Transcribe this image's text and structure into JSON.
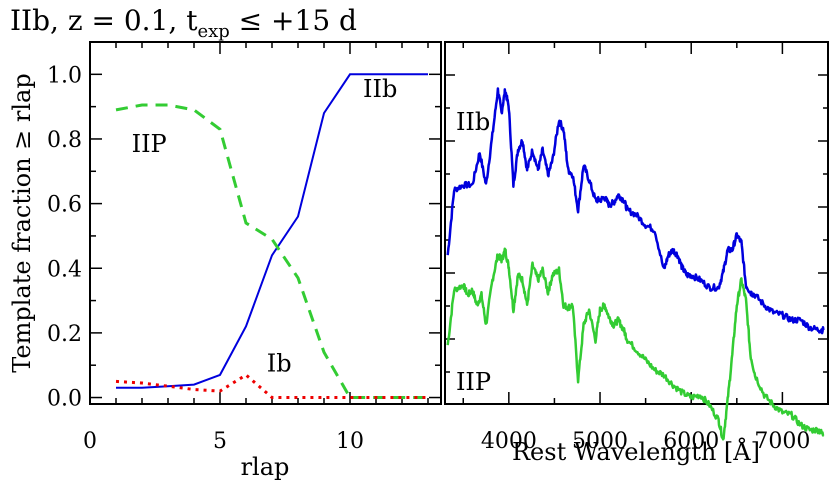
{
  "title": {
    "prefix": "IIb, z = 0.1, t",
    "subscript": "exp",
    "suffix": " ≤ +15 d"
  },
  "chart_data": [
    {
      "type": "line",
      "xlabel": "rlap",
      "ylabel": "Template fraction ≥ rlap",
      "xlim": [
        0,
        13.5
      ],
      "ylim": [
        -0.02,
        1.1
      ],
      "xticks": [
        0,
        5,
        10
      ],
      "xtick_labels": [
        "0",
        "5",
        "10"
      ],
      "yticks": [
        0.0,
        0.2,
        0.4,
        0.6,
        0.8,
        1.0
      ],
      "ytick_labels": [
        "0.0",
        "0.2",
        "0.4",
        "0.6",
        "0.8",
        "1.0"
      ],
      "grid": false,
      "series": [
        {
          "label": "IIb",
          "color": "#0000dd",
          "style": "solid",
          "x": [
            1,
            2,
            3,
            4,
            5,
            6,
            7,
            8,
            9,
            10,
            11,
            12,
            13
          ],
          "y": [
            0.03,
            0.03,
            0.035,
            0.04,
            0.07,
            0.22,
            0.44,
            0.56,
            0.88,
            1.0,
            1.0,
            1.0,
            1.0
          ]
        },
        {
          "label": "IIP",
          "color": "#33cc33",
          "style": "dashed",
          "x": [
            1,
            2,
            3,
            4,
            5,
            6,
            7,
            8,
            9,
            10,
            11,
            12,
            13
          ],
          "y": [
            0.89,
            0.905,
            0.905,
            0.89,
            0.83,
            0.54,
            0.49,
            0.37,
            0.14,
            0.0,
            0.0,
            0.0,
            0.0
          ]
        },
        {
          "label": "Ib",
          "color": "#ee0000",
          "style": "dotted",
          "x": [
            1,
            2,
            3,
            4,
            5,
            6,
            7,
            8,
            9,
            10,
            11,
            12,
            13
          ],
          "y": [
            0.05,
            0.045,
            0.035,
            0.025,
            0.02,
            0.07,
            0.0,
            0.0,
            0.0,
            0.0,
            0.0,
            0.0,
            0.0
          ]
        }
      ],
      "annotations": [
        {
          "text": "IIb",
          "x": 10.5,
          "y": 0.93
        },
        {
          "text": "IIP",
          "x": 1.6,
          "y": 0.76
        },
        {
          "text": "Ib",
          "x": 6.8,
          "y": 0.08
        }
      ]
    },
    {
      "type": "line",
      "xlabel": "Rest Wavelength [Å]",
      "ylabel": "",
      "xlim": [
        3300,
        7500
      ],
      "xticks": [
        4000,
        5000,
        6000,
        7000
      ],
      "xtick_labels": [
        "4000",
        "5000",
        "6000",
        "7000"
      ],
      "grid": false,
      "series": [
        {
          "label": "IIb",
          "color": "#0000dd",
          "x": [
            3330,
            3400,
            3500,
            3600,
            3680,
            3750,
            3820,
            3880,
            3920,
            3960,
            4000,
            4050,
            4100,
            4150,
            4200,
            4260,
            4320,
            4370,
            4430,
            4480,
            4550,
            4600,
            4650,
            4700,
            4760,
            4820,
            4880,
            4950,
            5000,
            5050,
            5100,
            5150,
            5200,
            5260,
            5300,
            5400,
            5500,
            5600,
            5700,
            5750,
            5800,
            5850,
            5900,
            5950,
            6000,
            6100,
            6200,
            6300,
            6350,
            6400,
            6450,
            6500,
            6550,
            6600,
            6650,
            6700,
            6800,
            6900,
            7000,
            7100,
            7200,
            7300,
            7400,
            7450
          ],
          "y": [
            0.3,
            0.56,
            0.58,
            0.58,
            0.71,
            0.58,
            0.78,
            0.96,
            0.87,
            0.96,
            0.89,
            0.58,
            0.72,
            0.76,
            0.64,
            0.72,
            0.64,
            0.72,
            0.62,
            0.68,
            0.84,
            0.8,
            0.64,
            0.62,
            0.48,
            0.66,
            0.6,
            0.52,
            0.52,
            0.53,
            0.5,
            0.51,
            0.54,
            0.52,
            0.48,
            0.46,
            0.42,
            0.4,
            0.24,
            0.3,
            0.32,
            0.3,
            0.25,
            0.22,
            0.22,
            0.2,
            0.17,
            0.17,
            0.23,
            0.32,
            0.32,
            0.38,
            0.35,
            0.18,
            0.15,
            0.14,
            0.1,
            0.07,
            0.06,
            0.04,
            0.04,
            0.01,
            0.0,
            0.0
          ]
        },
        {
          "label": "IIP",
          "color": "#33cc33",
          "x": [
            3330,
            3400,
            3500,
            3550,
            3600,
            3650,
            3700,
            3750,
            3820,
            3880,
            3920,
            3960,
            4000,
            4050,
            4100,
            4150,
            4200,
            4260,
            4320,
            4370,
            4430,
            4480,
            4550,
            4600,
            4650,
            4700,
            4760,
            4820,
            4880,
            4950,
            5000,
            5050,
            5100,
            5150,
            5200,
            5260,
            5300,
            5400,
            5500,
            5600,
            5700,
            5800,
            5900,
            6000,
            6100,
            6200,
            6300,
            6350,
            6400,
            6450,
            6500,
            6550,
            6600,
            6650,
            6700,
            6800,
            6900,
            7000,
            7100,
            7200,
            7300,
            7400,
            7450
          ],
          "y": [
            -0.06,
            0.16,
            0.18,
            0.14,
            0.16,
            0.1,
            0.14,
            0.02,
            0.2,
            0.3,
            0.28,
            0.32,
            0.25,
            0.08,
            0.22,
            0.2,
            0.1,
            0.26,
            0.2,
            0.24,
            0.15,
            0.22,
            0.24,
            0.1,
            0.09,
            0.1,
            -0.2,
            0.02,
            0.08,
            -0.04,
            0.08,
            0.1,
            0.05,
            0.02,
            0.04,
            0.0,
            -0.04,
            -0.08,
            -0.12,
            -0.16,
            -0.18,
            -0.22,
            -0.25,
            -0.27,
            -0.26,
            -0.3,
            -0.36,
            -0.44,
            -0.28,
            -0.1,
            0.1,
            0.2,
            0.12,
            -0.1,
            -0.18,
            -0.26,
            -0.3,
            -0.33,
            -0.34,
            -0.38,
            -0.4,
            -0.4,
            -0.42
          ]
        }
      ],
      "annotations": [
        {
          "text": "IIb",
          "x": 3420,
          "y": 0.8
        },
        {
          "text": "IIP",
          "x": 3420,
          "y": -0.24
        }
      ]
    }
  ]
}
